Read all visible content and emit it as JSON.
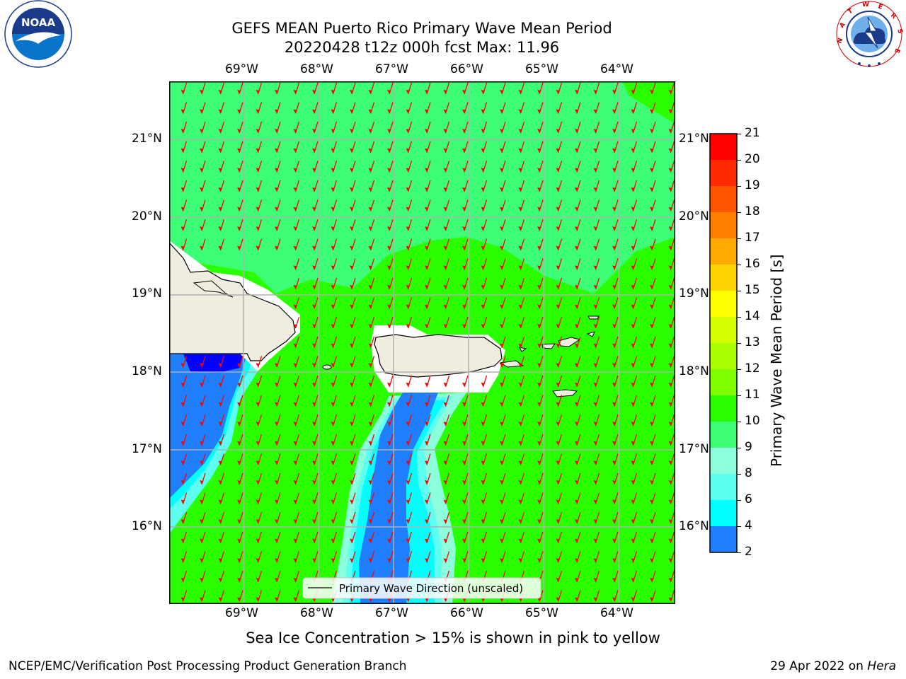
{
  "header": {
    "title_line1": "GEFS MEAN Puerto Rico Primary Wave Mean Period",
    "title_line2": "20220428 t12z 000h fcst   Max: 11.96"
  },
  "logos": {
    "left": {
      "name": "noaa-logo",
      "text": "NOAA",
      "ring_text": "NATIONAL OCEANIC AND ATMOSPHERIC ADMINISTRATION · U.S. DEPARTMENT OF COMMERCE"
    },
    "right": {
      "name": "nws-logo",
      "ring_text": "NATIONAL WEATHER SERVICE"
    }
  },
  "map": {
    "lon_labels": [
      "69°W",
      "68°W",
      "67°W",
      "66°W",
      "65°W",
      "64°W"
    ],
    "lat_labels": [
      "21°N",
      "20°N",
      "19°N",
      "18°N",
      "17°N",
      "16°N"
    ],
    "legend_label": "Primary Wave Direction (unscaled)",
    "arrow_color": "#ff0000",
    "land_color": "#efece0",
    "gridline_color": "#b0b0b0"
  },
  "colorbar": {
    "label": "Primary Wave Mean Period [s]",
    "ticks": [
      "21",
      "20",
      "19",
      "18",
      "17",
      "16",
      "15",
      "14",
      "13",
      "12",
      "11",
      "10",
      "9",
      "8",
      "6",
      "4",
      "2"
    ],
    "colors": [
      "#ff0000",
      "#ff2a00",
      "#ff5500",
      "#ff7f00",
      "#ffaa00",
      "#ffd400",
      "#ffff00",
      "#d4ff00",
      "#aaff00",
      "#7fff00",
      "#2aff00",
      "#3dff77",
      "#8cffdd",
      "#5cfff0",
      "#00ffff",
      "#1f7fff",
      "#0000ff"
    ]
  },
  "notes": {
    "sea_ice": "Sea Ice Concentration > 15% is shown in pink to yellow"
  },
  "footer": {
    "left": "NCEP/EMC/Verification Post Processing Product Generation Branch",
    "date": "29 Apr 2022 on ",
    "machine": "Hera"
  }
}
